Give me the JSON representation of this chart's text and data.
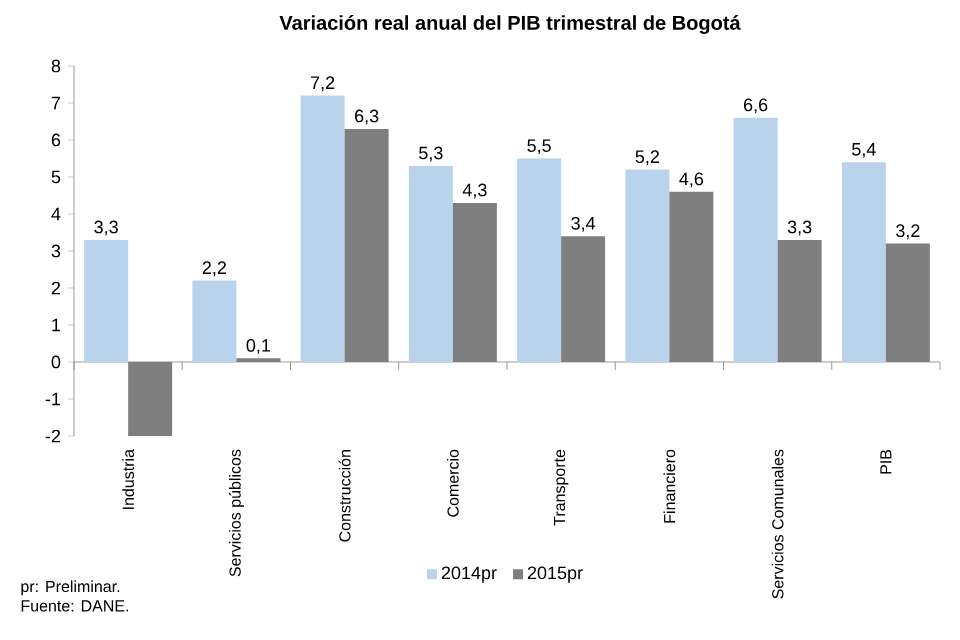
{
  "chart_data": {
    "type": "bar",
    "title": "Variación real anual del PIB trimestral de Bogotá",
    "categories": [
      "Industria",
      "Servicios públicos",
      "Construcción",
      "Comercio",
      "Transporte",
      "Financiero",
      "Servicios Comunales",
      "PIB"
    ],
    "series": [
      {
        "name": "2014pr",
        "color": "#b9d3ec",
        "values": [
          3.3,
          2.2,
          7.2,
          5.3,
          5.5,
          5.2,
          6.6,
          5.4
        ],
        "value_labels": [
          "3,3",
          "2,2",
          "7,2",
          "5,3",
          "5,5",
          "5,2",
          "6,6",
          "5,4"
        ]
      },
      {
        "name": "2015pr",
        "color": "#7f7f7f",
        "values": [
          -2.0,
          0.1,
          6.3,
          4.3,
          3.4,
          4.6,
          3.3,
          3.2
        ],
        "value_labels": [
          null,
          "0,1",
          "6,3",
          "4,3",
          "3,4",
          "4,6",
          "3,3",
          "3,2"
        ]
      }
    ],
    "ylim": [
      -2,
      8
    ],
    "yticks": [
      -2,
      -1,
      0,
      1,
      2,
      3,
      4,
      5,
      6,
      7,
      8
    ],
    "legend": "bottom",
    "annotations": [
      "pr: Preliminar.",
      "Fuente: DANE."
    ]
  }
}
